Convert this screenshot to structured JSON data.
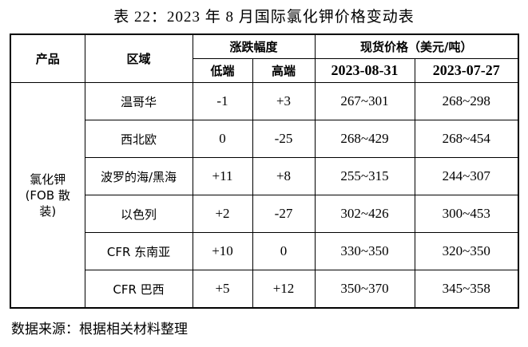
{
  "title": "表 22：2023 年 8 月国际氯化钾价格变动表",
  "table": {
    "headers": {
      "product": "产品",
      "region": "区域",
      "change": "涨跌幅度",
      "low": "低端",
      "high": "高端",
      "price": "现货价格（美元/吨）",
      "date1": "2023-08-31",
      "date2": "2023-07-27"
    },
    "product": [
      "氯化钾",
      "(FOB 散",
      "装)"
    ],
    "rows": [
      [
        "温哥华",
        "-1",
        "+3",
        "267~301",
        "268~298"
      ],
      [
        "西北欧",
        "0",
        "-25",
        "268~429",
        "268~454"
      ],
      [
        "波罗的海/黑海",
        "+11",
        "+8",
        "255~315",
        "244~307"
      ],
      [
        "以色列",
        "+2",
        "-27",
        "302~426",
        "300~453"
      ],
      [
        "CFR 东南亚",
        "+10",
        "0",
        "330~350",
        "320~350"
      ],
      [
        "CFR 巴西",
        "+5",
        "+12",
        "350~370",
        "345~358"
      ]
    ]
  },
  "source": "数据来源：根据相关材料整理"
}
